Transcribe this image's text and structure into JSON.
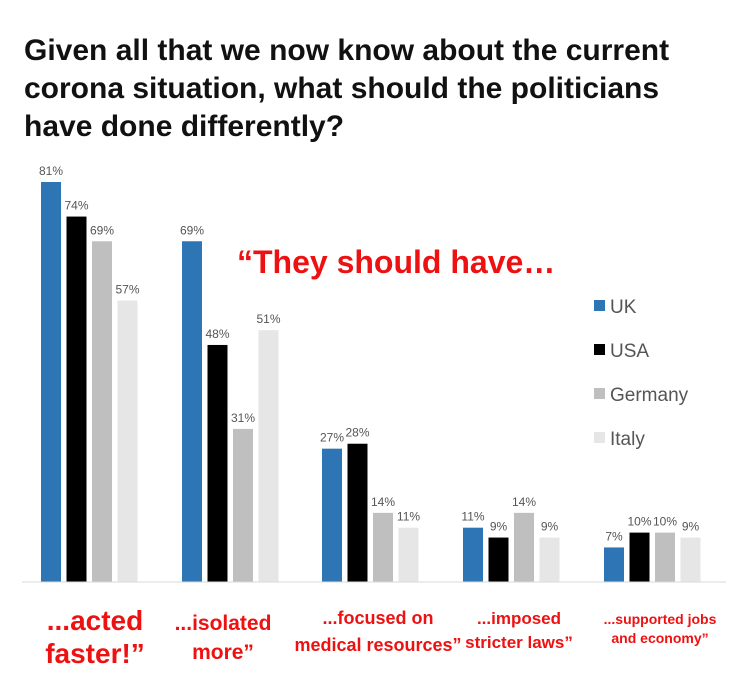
{
  "title_lines": [
    "Given all that we now know about the current",
    "corona situation, what should the politicians",
    "have done differently?"
  ],
  "annotation": "“They should have…",
  "chart_data": {
    "type": "bar",
    "title": "Given all that we now know about the current corona situation, what should the politicians have done differently?",
    "categories": [
      "...acted faster!",
      "...isolated more",
      "...focused on medical resources",
      "...imposed stricter laws",
      "...supported jobs and economy"
    ],
    "category_label_lines": [
      [
        "...acted",
        "faster!”"
      ],
      [
        "...isolated",
        "more”"
      ],
      [
        "...focused on",
        "medical resources”"
      ],
      [
        "...imposed",
        "stricter laws”"
      ],
      [
        "...supported jobs",
        "and economy”"
      ]
    ],
    "series": [
      {
        "name": "UK",
        "color": "#2e75b6",
        "values": [
          81,
          69,
          27,
          11,
          7
        ]
      },
      {
        "name": "USA",
        "color": "#000000",
        "values": [
          74,
          48,
          28,
          9,
          10
        ]
      },
      {
        "name": "Germany",
        "color": "#bfbfbf",
        "values": [
          69,
          31,
          14,
          14,
          10
        ]
      },
      {
        "name": "Italy",
        "color": "#e6e6e6",
        "values": [
          57,
          51,
          11,
          9,
          9
        ]
      }
    ],
    "value_suffix": "%",
    "ylim": [
      0,
      81
    ],
    "legend_position": "right",
    "grid": false,
    "label_color": "#ee1111",
    "value_label_color": "#555555"
  }
}
